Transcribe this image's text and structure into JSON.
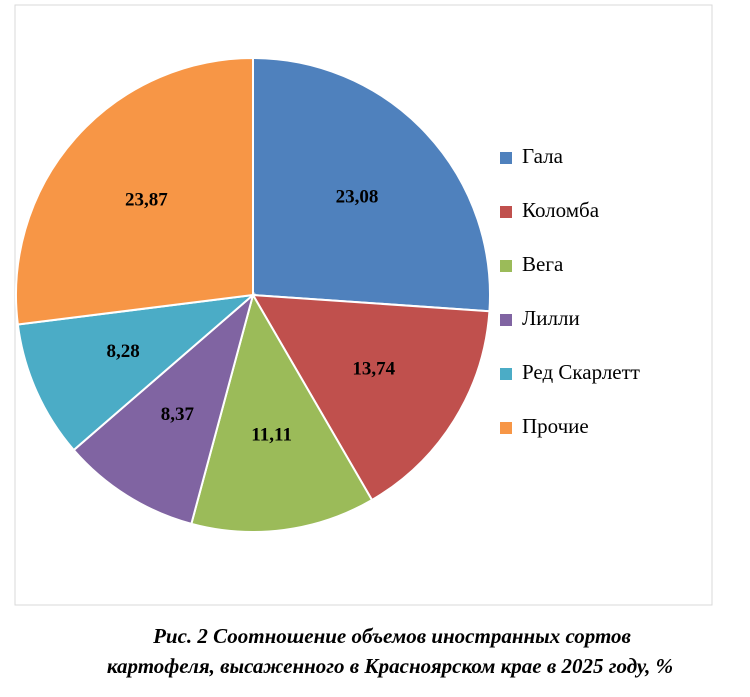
{
  "chart_data": {
    "type": "pie",
    "categories": [
      "Гала",
      "Коломба",
      "Вега",
      "Лилли",
      "Ред Скарлетт",
      "Прочие"
    ],
    "values": [
      23.08,
      13.74,
      11.11,
      8.37,
      8.28,
      23.87
    ],
    "value_labels": [
      "23,08",
      "13,74",
      "11,11",
      "8,37",
      "8,28",
      "23,87"
    ],
    "colors": [
      "#4f81bd",
      "#c0504d",
      "#9bbb59",
      "#8064a2",
      "#4bacc6",
      "#f79646"
    ],
    "legend": "right",
    "caption": [
      "Рис. 2 Соотношение объемов иностранных сортов",
      "картофеля, высаженного в Красноярском крае в 2025 году, %"
    ]
  }
}
